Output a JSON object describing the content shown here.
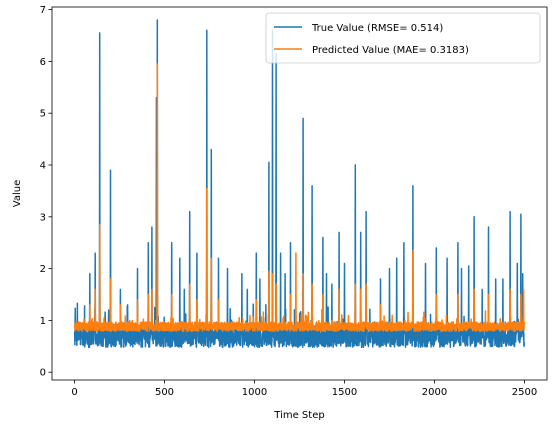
{
  "chart_data": {
    "type": "line",
    "title": "",
    "xlabel": "Time Step",
    "ylabel": "Value",
    "xlim": [
      -125,
      2625
    ],
    "ylim": [
      -0.15,
      7.05
    ],
    "xticks": [
      0,
      500,
      1000,
      1500,
      2000,
      2500
    ],
    "yticks": [
      0,
      1,
      2,
      3,
      4,
      5,
      6,
      7
    ],
    "n_points": 2500,
    "grid": false,
    "legend_position": "top-right",
    "series": [
      {
        "name": "True Value (RMSE= 0.514)",
        "color": "#1f77b4",
        "baseline": 0.7,
        "noise": 0.22,
        "min": 0.12,
        "peaks": [
          [
            85,
            1.9
          ],
          [
            115,
            2.3
          ],
          [
            140,
            6.55
          ],
          [
            200,
            3.9
          ],
          [
            255,
            1.6
          ],
          [
            295,
            1.3
          ],
          [
            350,
            2.0
          ],
          [
            410,
            2.5
          ],
          [
            430,
            2.8
          ],
          [
            455,
            5.3
          ],
          [
            460,
            6.8
          ],
          [
            540,
            2.5
          ],
          [
            585,
            2.2
          ],
          [
            610,
            1.6
          ],
          [
            640,
            3.1
          ],
          [
            680,
            2.3
          ],
          [
            735,
            6.6
          ],
          [
            760,
            4.3
          ],
          [
            800,
            2.2
          ],
          [
            850,
            2.0
          ],
          [
            930,
            1.9
          ],
          [
            960,
            1.6
          ],
          [
            1010,
            2.3
          ],
          [
            1030,
            1.8
          ],
          [
            1080,
            4.05
          ],
          [
            1100,
            6.6
          ],
          [
            1120,
            6.15
          ],
          [
            1145,
            2.3
          ],
          [
            1170,
            1.9
          ],
          [
            1200,
            2.5
          ],
          [
            1270,
            4.9
          ],
          [
            1320,
            3.6
          ],
          [
            1380,
            2.6
          ],
          [
            1400,
            1.9
          ],
          [
            1430,
            1.7
          ],
          [
            1470,
            2.7
          ],
          [
            1500,
            2.1
          ],
          [
            1560,
            4.0
          ],
          [
            1590,
            2.7
          ],
          [
            1620,
            3.1
          ],
          [
            1700,
            1.8
          ],
          [
            1750,
            2.0
          ],
          [
            1790,
            2.2
          ],
          [
            1830,
            2.5
          ],
          [
            1880,
            3.6
          ],
          [
            1950,
            2.1
          ],
          [
            2010,
            2.4
          ],
          [
            2070,
            2.2
          ],
          [
            2130,
            2.5
          ],
          [
            2150,
            2.0
          ],
          [
            2190,
            2.05
          ],
          [
            2220,
            3.0
          ],
          [
            2265,
            1.6
          ],
          [
            2300,
            2.8
          ],
          [
            2340,
            1.8
          ],
          [
            2380,
            1.8
          ],
          [
            2420,
            3.1
          ],
          [
            2460,
            2.1
          ],
          [
            2480,
            3.05
          ],
          [
            2490,
            1.9
          ]
        ]
      },
      {
        "name": "Predicted Value (MAE= 0.3183)",
        "color": "#ff7f0e",
        "baseline": 0.88,
        "noise": 0.09,
        "min": 0.55,
        "peaks": [
          [
            85,
            1.3
          ],
          [
            115,
            1.6
          ],
          [
            140,
            2.85
          ],
          [
            200,
            1.8
          ],
          [
            255,
            1.3
          ],
          [
            350,
            1.4
          ],
          [
            410,
            1.5
          ],
          [
            430,
            1.6
          ],
          [
            460,
            5.95
          ],
          [
            540,
            1.5
          ],
          [
            640,
            1.7
          ],
          [
            680,
            1.4
          ],
          [
            735,
            3.55
          ],
          [
            760,
            2.2
          ],
          [
            800,
            1.4
          ],
          [
            1010,
            1.4
          ],
          [
            1080,
            1.95
          ],
          [
            1100,
            1.9
          ],
          [
            1120,
            1.7
          ],
          [
            1200,
            1.5
          ],
          [
            1230,
            2.3
          ],
          [
            1270,
            1.9
          ],
          [
            1320,
            1.7
          ],
          [
            1380,
            1.5
          ],
          [
            1470,
            1.6
          ],
          [
            1560,
            1.7
          ],
          [
            1590,
            1.6
          ],
          [
            1620,
            1.7
          ],
          [
            1700,
            1.3
          ],
          [
            1880,
            2.35
          ],
          [
            2010,
            1.5
          ],
          [
            2130,
            1.5
          ],
          [
            2220,
            1.6
          ],
          [
            2300,
            1.5
          ],
          [
            2420,
            1.6
          ],
          [
            2480,
            1.5
          ],
          [
            2495,
            1.6
          ]
        ]
      }
    ]
  }
}
